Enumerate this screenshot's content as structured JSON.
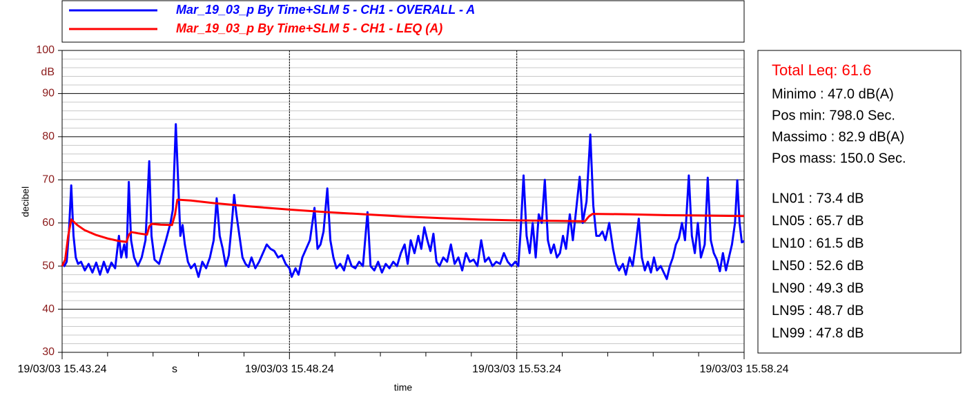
{
  "chart_data": {
    "type": "line",
    "x_label": "time",
    "y_label": "decibel",
    "y_unit": "dB",
    "x_unit": "s",
    "xlim": [
      0,
      900
    ],
    "xticks": [
      {
        "value": 0,
        "label": "19/03/03 15.43.24"
      },
      {
        "value": 300,
        "label": "19/03/03 15.48.24"
      },
      {
        "value": 600,
        "label": "19/03/03 15.53.24"
      },
      {
        "value": 900,
        "label": "19/03/03 15.58.24"
      }
    ],
    "xminorticks": [
      60,
      120,
      180,
      240,
      360,
      420,
      480,
      540,
      660,
      720,
      780,
      840
    ],
    "ylim": [
      30,
      100
    ],
    "yticks": [
      30,
      40,
      50,
      60,
      70,
      80,
      90,
      100
    ],
    "yminorticks": [
      32,
      34,
      36,
      38,
      42,
      44,
      46,
      48,
      52,
      54,
      56,
      58,
      62,
      64,
      66,
      68,
      72,
      74,
      76,
      78,
      82,
      84,
      86,
      88,
      92,
      94,
      96,
      98
    ],
    "grid": true,
    "series": [
      {
        "name": "Mar_19_03_p By Time+SLM 5 - CH1 - OVERALL - A",
        "color": "#0000ff",
        "x": [
          0,
          3,
          6,
          9,
          12,
          15,
          18,
          21,
          25,
          30,
          35,
          40,
          45,
          50,
          55,
          60,
          65,
          70,
          75,
          78,
          82,
          85,
          88,
          91,
          95,
          100,
          105,
          110,
          115,
          118,
          122,
          128,
          132,
          137,
          140,
          143,
          146,
          150,
          153,
          156,
          159,
          162,
          166,
          170,
          175,
          180,
          185,
          190,
          195,
          200,
          204,
          208,
          212,
          216,
          220,
          224,
          227,
          230,
          234,
          238,
          242,
          246,
          250,
          255,
          260,
          265,
          270,
          275,
          280,
          285,
          290,
          295,
          300,
          303,
          308,
          312,
          317,
          322,
          327,
          333,
          337,
          341,
          345,
          350,
          354,
          358,
          362,
          367,
          372,
          377,
          382,
          387,
          392,
          397,
          403,
          407,
          412,
          417,
          422,
          427,
          432,
          437,
          442,
          447,
          452,
          456,
          460,
          465,
          470,
          474,
          478,
          482,
          486,
          490,
          494,
          498,
          503,
          508,
          513,
          518,
          523,
          528,
          533,
          538,
          543,
          548,
          553,
          558,
          563,
          568,
          573,
          578,
          583,
          588,
          593,
          598,
          602,
          605,
          609,
          613,
          617,
          621,
          625,
          629,
          633,
          637,
          641,
          645,
          649,
          653,
          657,
          661,
          665,
          670,
          674,
          678,
          683,
          687,
          692,
          697,
          701,
          705,
          709,
          713,
          717,
          722,
          727,
          731,
          735,
          740,
          744,
          749,
          753,
          757,
          761,
          765,
          769,
          773,
          777,
          781,
          785,
          790,
          794,
          798,
          802,
          806,
          810,
          814,
          818,
          822,
          827,
          831,
          835,
          839,
          843,
          848,
          852,
          856,
          860,
          864,
          868,
          872,
          876,
          880,
          884,
          888,
          891,
          894,
          897,
          900
        ],
        "values": [
          50.5,
          50,
          51,
          58,
          68.7,
          57,
          52,
          50.5,
          51,
          49,
          50.5,
          48.5,
          50.8,
          48,
          51,
          48.5,
          50.8,
          49.5,
          57,
          52,
          55,
          52,
          69.5,
          56,
          52,
          50,
          52,
          56,
          74.3,
          57,
          51.5,
          50.5,
          53,
          56,
          58,
          60,
          63,
          82.9,
          70,
          57,
          59.5,
          55,
          51,
          49.5,
          50.5,
          47.5,
          51,
          49.5,
          52,
          56,
          65.7,
          57,
          54,
          50,
          52.5,
          60,
          66.5,
          62,
          57,
          52,
          50.5,
          49.8,
          52,
          49.5,
          51,
          53,
          55,
          54,
          53.5,
          52,
          52.5,
          50.5,
          49.5,
          47.5,
          49.5,
          48,
          52,
          54,
          56,
          63.5,
          54,
          55,
          58,
          68,
          56,
          52,
          49.5,
          50.5,
          49,
          52.5,
          50,
          49.5,
          51,
          50,
          62.5,
          50,
          49,
          51,
          48.5,
          50.5,
          49.5,
          51,
          50,
          53,
          55,
          50.5,
          56,
          53,
          57,
          54,
          59,
          56,
          53.5,
          57.5,
          51,
          50,
          52,
          51,
          55,
          50.5,
          52,
          49,
          53,
          51,
          51.5,
          50,
          56,
          51,
          52,
          50,
          51,
          50.5,
          53,
          51,
          50,
          51,
          50,
          58,
          71,
          57,
          53,
          60,
          52,
          62,
          60,
          70,
          56,
          53,
          55,
          52,
          53,
          57,
          54,
          62,
          56,
          62.5,
          70.7,
          60,
          65,
          80.5,
          64,
          57,
          57,
          58,
          56,
          60,
          54,
          50.5,
          49,
          50.5,
          48,
          52,
          50,
          55,
          61,
          52,
          49,
          51,
          48.5,
          52,
          49,
          50,
          48.5,
          47,
          50,
          52,
          55,
          56.5,
          60,
          56,
          71,
          57,
          53,
          60,
          52,
          55,
          70.5,
          56,
          53,
          51.5,
          48.8,
          53,
          49,
          52,
          55,
          60,
          69.9,
          60,
          55.5,
          55.8
        ]
      },
      {
        "name": "Mar_19_03_p By Time+SLM 5 - CH1 - LEQ (A)",
        "color": "#ff0000",
        "x": [
          0,
          4,
          8,
          12,
          20,
          30,
          45,
          60,
          75,
          85,
          88,
          91,
          100,
          112,
          115,
          118,
          130,
          145,
          149,
          152,
          170,
          200,
          250,
          300,
          350,
          400,
          450,
          500,
          550,
          600,
          650,
          690,
          695,
          700,
          750,
          800,
          850,
          900
        ],
        "values": [
          50,
          51.5,
          57,
          60.8,
          59.5,
          58.3,
          57.2,
          56.4,
          55.8,
          55.6,
          57.2,
          57.9,
          57.6,
          57.3,
          59.2,
          59.8,
          59.6,
          59.5,
          62,
          65.4,
          65.2,
          64.6,
          63.8,
          63.1,
          62.5,
          62,
          61.5,
          61.1,
          60.8,
          60.6,
          60.5,
          60.4,
          61.5,
          62.1,
          62,
          61.8,
          61.7,
          61.6
        ]
      }
    ]
  },
  "stats": {
    "total": "Total Leq: 61.6",
    "lines": [
      "Minimo : 47.0 dB(A)",
      "Pos min: 798.0 Sec.",
      "Massimo : 82.9 dB(A)",
      "Pos mass: 150.0 Sec."
    ],
    "levels": [
      "LN01 : 73.4 dB",
      "LN05 : 65.7 dB",
      "LN10 : 61.5 dB",
      "LN50 : 52.6 dB",
      "LN90 : 49.3 dB",
      "LN95 : 48.7 dB",
      "LN99 : 47.8 dB"
    ]
  }
}
